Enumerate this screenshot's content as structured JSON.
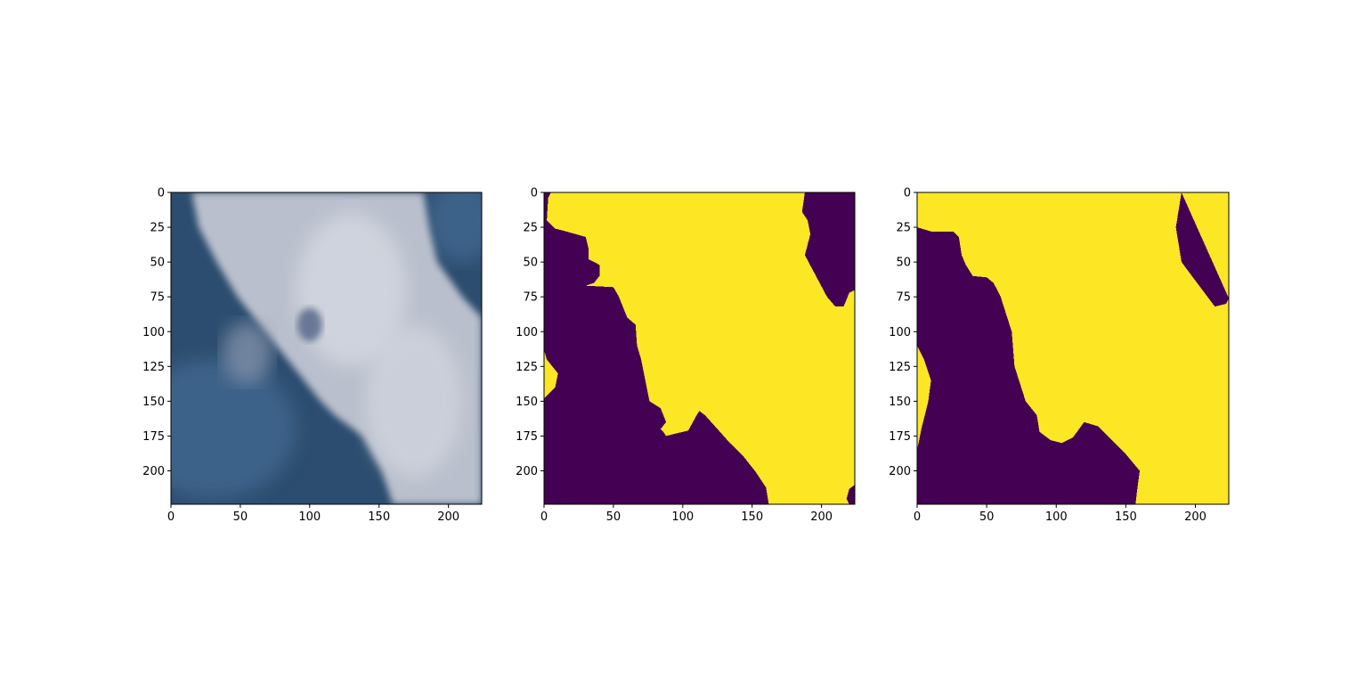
{
  "chart_data": [
    {
      "type": "heatmap",
      "content": "satellite-image",
      "xlim": [
        0,
        224
      ],
      "ylim": [
        224,
        0
      ],
      "xticks": [
        0,
        50,
        100,
        150,
        200
      ],
      "yticks": [
        0,
        25,
        50,
        75,
        100,
        125,
        150,
        175,
        200
      ],
      "colors": {
        "sky": "#2c4d6f",
        "sky_light": "#3d6289",
        "cloud": "#b9bfcc",
        "cloud_bright": "#d3d7e0"
      },
      "cloud_boundary_left": [
        [
          0,
          15
        ],
        [
          25,
          20
        ],
        [
          50,
          33
        ],
        [
          75,
          48
        ],
        [
          100,
          68
        ],
        [
          125,
          88
        ],
        [
          150,
          108
        ],
        [
          160,
          118
        ],
        [
          175,
          138
        ],
        [
          200,
          152
        ],
        [
          224,
          160
        ]
      ],
      "cloud_boundary_right": [
        [
          0,
          182
        ],
        [
          25,
          186
        ],
        [
          50,
          192
        ],
        [
          75,
          210
        ],
        [
          90,
          224
        ]
      ],
      "dark_spot": {
        "x": 100,
        "y": 95
      }
    },
    {
      "type": "heatmap",
      "colormap": "viridis",
      "classes": {
        "0": "#440154",
        "1": "#fde725"
      },
      "xlim": [
        0,
        224
      ],
      "ylim": [
        224,
        0
      ],
      "xticks": [
        0,
        50,
        100,
        150,
        200
      ],
      "yticks": [
        0,
        25,
        50,
        75,
        100,
        125,
        150,
        175,
        200
      ],
      "region_1_left_boundary": [
        [
          0,
          5
        ],
        [
          4,
          3
        ],
        [
          20,
          2
        ],
        [
          26,
          8
        ],
        [
          28,
          16
        ],
        [
          32,
          30
        ],
        [
          40,
          32
        ],
        [
          48,
          32
        ],
        [
          52,
          40
        ],
        [
          60,
          40
        ],
        [
          65,
          36
        ],
        [
          67,
          30
        ],
        [
          68,
          50
        ],
        [
          75,
          54
        ],
        [
          90,
          60
        ],
        [
          95,
          66
        ],
        [
          110,
          67
        ],
        [
          120,
          70
        ],
        [
          130,
          72
        ],
        [
          140,
          74
        ],
        [
          150,
          76
        ],
        [
          155,
          84
        ],
        [
          165,
          88
        ],
        [
          170,
          84
        ],
        [
          172,
          86
        ],
        [
          175,
          88
        ],
        [
          171,
          104
        ],
        [
          160,
          110
        ],
        [
          157,
          112
        ],
        [
          160,
          116
        ],
        [
          170,
          125
        ],
        [
          180,
          134
        ],
        [
          190,
          144
        ],
        [
          200,
          152
        ],
        [
          212,
          160
        ],
        [
          224,
          162
        ]
      ],
      "region_1_right_boundary": [
        [
          0,
          224
        ],
        [
          70,
          224
        ],
        [
          72,
          220
        ],
        [
          82,
          216
        ],
        [
          82,
          210
        ],
        [
          75,
          204
        ],
        [
          60,
          196
        ],
        [
          45,
          188
        ],
        [
          30,
          192
        ],
        [
          20,
          190
        ],
        [
          14,
          186
        ],
        [
          0,
          188
        ]
      ],
      "region_1_left_edge": [
        [
          113,
          0
        ],
        [
          120,
          2
        ],
        [
          130,
          10
        ],
        [
          140,
          8
        ],
        [
          148,
          0
        ]
      ],
      "region_1_bottom_right": [
        [
          210,
          224
        ],
        [
          213,
          220
        ],
        [
          220,
          218
        ],
        [
          224,
          220
        ]
      ]
    },
    {
      "type": "heatmap",
      "colormap": "viridis",
      "classes": {
        "0": "#440154",
        "1": "#fde725"
      },
      "xlim": [
        0,
        224
      ],
      "ylim": [
        224,
        0
      ],
      "xticks": [
        0,
        50,
        100,
        150,
        200
      ],
      "yticks": [
        0,
        25,
        50,
        75,
        100,
        125,
        150,
        175,
        200
      ],
      "region_1_left_boundary": [
        [
          0,
          0
        ],
        [
          25,
          0
        ],
        [
          28,
          10
        ],
        [
          28,
          26
        ],
        [
          32,
          30
        ],
        [
          45,
          32
        ],
        [
          52,
          35
        ],
        [
          60,
          40
        ],
        [
          61,
          50
        ],
        [
          65,
          55
        ],
        [
          75,
          60
        ],
        [
          100,
          68
        ],
        [
          125,
          70
        ],
        [
          150,
          78
        ],
        [
          160,
          86
        ],
        [
          172,
          88
        ],
        [
          178,
          96
        ],
        [
          180,
          104
        ],
        [
          176,
          112
        ],
        [
          165,
          120
        ],
        [
          168,
          130
        ],
        [
          178,
          140
        ],
        [
          188,
          150
        ],
        [
          200,
          160
        ],
        [
          215,
          158
        ],
        [
          224,
          157
        ]
      ],
      "region_1_right_boundary": [
        [
          0,
          190
        ],
        [
          25,
          186
        ],
        [
          50,
          190
        ],
        [
          70,
          205
        ],
        [
          82,
          214
        ],
        [
          80,
          222
        ],
        [
          76,
          224
        ]
      ],
      "region_1_left_edge": [
        [
          110,
          0
        ],
        [
          120,
          5
        ],
        [
          135,
          10
        ],
        [
          150,
          8
        ],
        [
          170,
          3
        ],
        [
          185,
          0
        ]
      ]
    }
  ]
}
